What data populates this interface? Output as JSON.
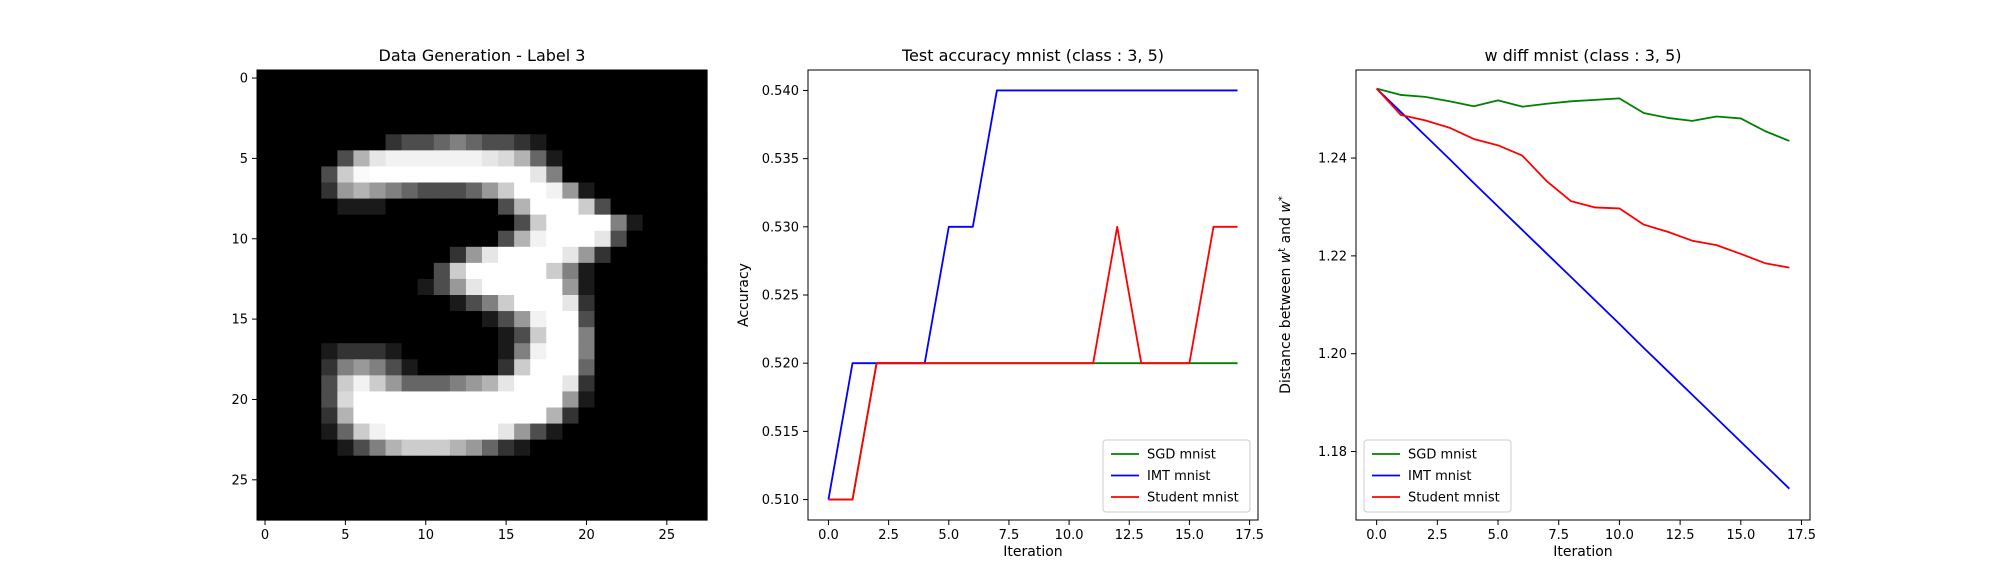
{
  "chart_data": [
    {
      "type": "heatmap",
      "title": "Data Generation - Label 3",
      "xticks": [
        "0",
        "5",
        "10",
        "15",
        "20",
        "25"
      ],
      "yticks": [
        "0",
        "5",
        "10",
        "15",
        "20",
        "25"
      ],
      "xlim": [
        -0.5,
        27.5
      ],
      "ylim": [
        -0.5,
        27.5
      ],
      "colormap": "gray",
      "values": [
        [
          0,
          0,
          0,
          0,
          0,
          0,
          0,
          0,
          0,
          0,
          0,
          0,
          0,
          0,
          0,
          0,
          0,
          0,
          0,
          0,
          0,
          0,
          0,
          0,
          0,
          0,
          0,
          0
        ],
        [
          0,
          0,
          0,
          0,
          0,
          0,
          0,
          0,
          0,
          0,
          0,
          0,
          0,
          0,
          0,
          0,
          0,
          0,
          0,
          0,
          0,
          0,
          0,
          0,
          0,
          0,
          0,
          0
        ],
        [
          0,
          0,
          0,
          0,
          0,
          0,
          0,
          0,
          0,
          0,
          0,
          0,
          0,
          0,
          0,
          0,
          0,
          0,
          0,
          0,
          0,
          0,
          0,
          0,
          0,
          0,
          0,
          0
        ],
        [
          0,
          0,
          0,
          0,
          0,
          0,
          0,
          0,
          0,
          0,
          0,
          0,
          0,
          0,
          0,
          0,
          0,
          0,
          0,
          0,
          0,
          0,
          0,
          0,
          0,
          0,
          0,
          0
        ],
        [
          0,
          0,
          0,
          0,
          0,
          0,
          0,
          0,
          0.2,
          0.3,
          0.3,
          0.4,
          0.5,
          0.4,
          0.3,
          0.3,
          0.2,
          0.1,
          0,
          0,
          0,
          0,
          0,
          0,
          0,
          0,
          0,
          0
        ],
        [
          0,
          0,
          0,
          0,
          0,
          0.3,
          0.7,
          0.9,
          0.95,
          0.95,
          0.95,
          0.95,
          0.95,
          0.95,
          0.9,
          0.85,
          0.7,
          0.4,
          0.1,
          0,
          0,
          0,
          0,
          0,
          0,
          0,
          0,
          0
        ],
        [
          0,
          0,
          0,
          0,
          0.3,
          0.8,
          0.98,
          1,
          1,
          1,
          1,
          1,
          1,
          1,
          1,
          1,
          1,
          0.9,
          0.5,
          0,
          0,
          0,
          0,
          0,
          0,
          0,
          0,
          0
        ],
        [
          0,
          0,
          0,
          0,
          0.2,
          0.6,
          0.7,
          0.6,
          0.5,
          0.4,
          0.3,
          0.3,
          0.3,
          0.4,
          0.6,
          0.8,
          1,
          1,
          0.95,
          0.6,
          0.1,
          0,
          0,
          0,
          0,
          0,
          0,
          0
        ],
        [
          0,
          0,
          0,
          0,
          0,
          0.1,
          0.1,
          0.1,
          0,
          0,
          0,
          0,
          0,
          0,
          0,
          0.3,
          0.7,
          1,
          1,
          1,
          0.8,
          0.3,
          0,
          0,
          0,
          0,
          0,
          0
        ],
        [
          0,
          0,
          0,
          0,
          0,
          0,
          0,
          0,
          0,
          0,
          0,
          0,
          0,
          0,
          0,
          0,
          0.3,
          0.8,
          1,
          1,
          1,
          1,
          0.5,
          0.1,
          0,
          0,
          0,
          0
        ],
        [
          0,
          0,
          0,
          0,
          0,
          0,
          0,
          0,
          0,
          0,
          0,
          0,
          0,
          0,
          0,
          0.3,
          0.7,
          0.95,
          1,
          1,
          1,
          0.9,
          0.3,
          0,
          0,
          0,
          0,
          0
        ],
        [
          0,
          0,
          0,
          0,
          0,
          0,
          0,
          0,
          0,
          0,
          0,
          0,
          0.2,
          0.6,
          0.9,
          1,
          1,
          1,
          1,
          0.9,
          0.6,
          0.2,
          0,
          0,
          0,
          0,
          0,
          0
        ],
        [
          0,
          0,
          0,
          0,
          0,
          0,
          0,
          0,
          0,
          0,
          0,
          0.3,
          0.8,
          1,
          1,
          1,
          1,
          1,
          0.8,
          0.5,
          0.1,
          0,
          0,
          0,
          0,
          0,
          0,
          0
        ],
        [
          0,
          0,
          0,
          0,
          0,
          0,
          0,
          0,
          0,
          0,
          0.1,
          0.3,
          0.6,
          0.9,
          1,
          1,
          1,
          1,
          1,
          0.6,
          0.1,
          0,
          0,
          0,
          0,
          0,
          0,
          0
        ],
        [
          0,
          0,
          0,
          0,
          0,
          0,
          0,
          0,
          0,
          0,
          0,
          0,
          0.1,
          0.3,
          0.5,
          0.8,
          1,
          1,
          1,
          0.9,
          0.2,
          0,
          0,
          0,
          0,
          0,
          0,
          0
        ],
        [
          0,
          0,
          0,
          0,
          0,
          0,
          0,
          0,
          0,
          0,
          0,
          0,
          0,
          0,
          0.1,
          0.3,
          0.6,
          0.95,
          1,
          1,
          0.3,
          0,
          0,
          0,
          0,
          0,
          0,
          0
        ],
        [
          0,
          0,
          0,
          0,
          0,
          0,
          0,
          0,
          0,
          0,
          0,
          0,
          0,
          0,
          0,
          0.1,
          0.3,
          0.8,
          1,
          1,
          0.5,
          0,
          0,
          0,
          0,
          0,
          0,
          0
        ],
        [
          0,
          0,
          0,
          0,
          0.1,
          0.2,
          0.2,
          0.2,
          0.1,
          0,
          0,
          0,
          0,
          0,
          0,
          0.1,
          0.5,
          0.95,
          1,
          1,
          0.5,
          0,
          0,
          0,
          0,
          0,
          0,
          0
        ],
        [
          0,
          0,
          0,
          0,
          0.2,
          0.5,
          0.6,
          0.5,
          0.3,
          0.1,
          0,
          0,
          0,
          0,
          0,
          0.2,
          0.8,
          1,
          1,
          1,
          0.4,
          0,
          0,
          0,
          0,
          0,
          0,
          0
        ],
        [
          0,
          0,
          0,
          0,
          0.3,
          0.8,
          0.95,
          0.8,
          0.6,
          0.4,
          0.4,
          0.4,
          0.5,
          0.6,
          0.7,
          0.9,
          1,
          1,
          1,
          0.9,
          0.2,
          0,
          0,
          0,
          0,
          0,
          0,
          0
        ],
        [
          0,
          0,
          0,
          0,
          0.3,
          0.85,
          1,
          1,
          1,
          1,
          1,
          1,
          1,
          1,
          1,
          1,
          1,
          1,
          1,
          0.6,
          0.1,
          0,
          0,
          0,
          0,
          0,
          0,
          0
        ],
        [
          0,
          0,
          0,
          0,
          0.2,
          0.7,
          1,
          1,
          1,
          1,
          1,
          1,
          1,
          1,
          1,
          1,
          1,
          1,
          0.7,
          0.2,
          0,
          0,
          0,
          0,
          0,
          0,
          0,
          0
        ],
        [
          0,
          0,
          0,
          0,
          0.1,
          0.4,
          0.8,
          0.95,
          1,
          1,
          1,
          1,
          1,
          1,
          1,
          0.9,
          0.6,
          0.3,
          0.1,
          0,
          0,
          0,
          0,
          0,
          0,
          0,
          0,
          0
        ],
        [
          0,
          0,
          0,
          0,
          0,
          0.1,
          0.3,
          0.5,
          0.7,
          0.8,
          0.8,
          0.8,
          0.7,
          0.6,
          0.4,
          0.2,
          0.1,
          0,
          0,
          0,
          0,
          0,
          0,
          0,
          0,
          0,
          0,
          0
        ],
        [
          0,
          0,
          0,
          0,
          0,
          0,
          0,
          0,
          0,
          0,
          0,
          0,
          0,
          0,
          0,
          0,
          0,
          0,
          0,
          0,
          0,
          0,
          0,
          0,
          0,
          0,
          0,
          0
        ],
        [
          0,
          0,
          0,
          0,
          0,
          0,
          0,
          0,
          0,
          0,
          0,
          0,
          0,
          0,
          0,
          0,
          0,
          0,
          0,
          0,
          0,
          0,
          0,
          0,
          0,
          0,
          0,
          0
        ],
        [
          0,
          0,
          0,
          0,
          0,
          0,
          0,
          0,
          0,
          0,
          0,
          0,
          0,
          0,
          0,
          0,
          0,
          0,
          0,
          0,
          0,
          0,
          0,
          0,
          0,
          0,
          0,
          0
        ],
        [
          0,
          0,
          0,
          0,
          0,
          0,
          0,
          0,
          0,
          0,
          0,
          0,
          0,
          0,
          0,
          0,
          0,
          0,
          0,
          0,
          0,
          0,
          0,
          0,
          0,
          0,
          0,
          0
        ]
      ]
    },
    {
      "type": "line",
      "title": "Test accuracy mnist (class : 3, 5)",
      "xlabel": "Iteration",
      "ylabel": "Accuracy",
      "xlim": [
        -0.85,
        17.85
      ],
      "ylim": [
        0.5085,
        0.5415
      ],
      "xticks": [
        "0.0",
        "2.5",
        "5.0",
        "7.5",
        "10.0",
        "12.5",
        "15.0",
        "17.5"
      ],
      "xtick_values": [
        0,
        2.5,
        5,
        7.5,
        10,
        12.5,
        15,
        17.5
      ],
      "yticks": [
        "0.510",
        "0.515",
        "0.520",
        "0.525",
        "0.530",
        "0.535",
        "0.540"
      ],
      "ytick_values": [
        0.51,
        0.515,
        0.52,
        0.525,
        0.53,
        0.535,
        0.54
      ],
      "legend_position": "lower-right",
      "x": [
        0,
        1,
        2,
        3,
        4,
        5,
        6,
        7,
        8,
        9,
        10,
        11,
        12,
        13,
        14,
        15,
        16,
        17
      ],
      "series": [
        {
          "name": "SGD mnist",
          "color": "#008000",
          "values": [
            0.51,
            0.51,
            0.52,
            0.52,
            0.52,
            0.52,
            0.52,
            0.52,
            0.52,
            0.52,
            0.52,
            0.52,
            0.52,
            0.52,
            0.52,
            0.52,
            0.52,
            0.52
          ]
        },
        {
          "name": "IMT mnist",
          "color": "#0000ff",
          "values": [
            0.51,
            0.52,
            0.52,
            0.52,
            0.52,
            0.53,
            0.53,
            0.54,
            0.54,
            0.54,
            0.54,
            0.54,
            0.54,
            0.54,
            0.54,
            0.54,
            0.54,
            0.54
          ]
        },
        {
          "name": "Student mnist",
          "color": "#ff0000",
          "values": [
            0.51,
            0.51,
            0.52,
            0.52,
            0.52,
            0.52,
            0.52,
            0.52,
            0.52,
            0.52,
            0.52,
            0.52,
            0.53,
            0.52,
            0.52,
            0.52,
            0.53,
            0.53
          ]
        }
      ]
    },
    {
      "type": "line",
      "title": "w diff mnist (class : 3, 5)",
      "xlabel": "Iteration",
      "ylabel": "Distance between w^t and w^*",
      "ylabel_parts": [
        "Distance between ",
        "w",
        "t",
        " and ",
        "w",
        "*"
      ],
      "xlim": [
        -0.85,
        17.85
      ],
      "ylim": [
        1.166,
        1.258
      ],
      "xticks": [
        "0.0",
        "2.5",
        "5.0",
        "7.5",
        "10.0",
        "12.5",
        "15.0",
        "17.5"
      ],
      "xtick_values": [
        0,
        2.5,
        5,
        7.5,
        10,
        12.5,
        15,
        17.5
      ],
      "yticks": [
        "1.18",
        "1.20",
        "1.22",
        "1.24"
      ],
      "ytick_values": [
        1.18,
        1.2,
        1.22,
        1.24
      ],
      "legend_position": "lower-left",
      "x": [
        0,
        1,
        2,
        3,
        4,
        5,
        6,
        7,
        8,
        9,
        10,
        11,
        12,
        13,
        14,
        15,
        16,
        17
      ],
      "series": [
        {
          "name": "SGD mnist",
          "color": "#008000",
          "values": [
            1.2542,
            1.2529,
            1.2525,
            1.2516,
            1.2506,
            1.2518,
            1.2505,
            1.2511,
            1.2516,
            1.2519,
            1.2522,
            1.2492,
            1.2482,
            1.2476,
            1.2485,
            1.2481,
            1.2455,
            1.2435
          ]
        },
        {
          "name": "IMT mnist",
          "color": "#0000ff",
          "values": [
            1.2542,
            1.2494,
            1.2446,
            1.2398,
            1.2349,
            1.2301,
            1.2253,
            1.2205,
            1.2157,
            1.2109,
            1.2061,
            1.2012,
            1.1964,
            1.1916,
            1.1868,
            1.182,
            1.1772,
            1.1724
          ]
        },
        {
          "name": "Student mnist",
          "color": "#ff0000",
          "values": [
            1.2542,
            1.2488,
            1.2477,
            1.2462,
            1.2439,
            1.2426,
            1.2405,
            1.2353,
            1.2312,
            1.2299,
            1.2297,
            1.2264,
            1.2249,
            1.2231,
            1.2222,
            1.2204,
            1.2185,
            1.2176
          ]
        }
      ]
    }
  ]
}
